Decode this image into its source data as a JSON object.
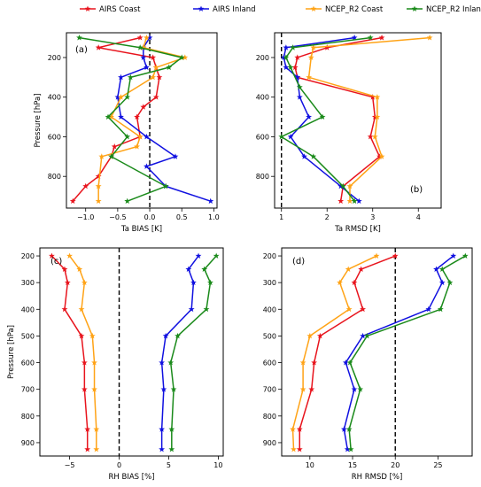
{
  "legend": [
    {
      "name": "AIRS Coast",
      "color": "#e8141d"
    },
    {
      "name": "AIRS Inland",
      "color": "#1010e0"
    },
    {
      "name": "NCEP_R2 Coast",
      "color": "#ffa316"
    },
    {
      "name": "NCEP_R2 Inland",
      "color": "#1a8a1a"
    }
  ],
  "chart_data": [
    {
      "type": "line",
      "panel": "(a)",
      "xlabel": "Ta BIAS [K]",
      "ylabel": "Pressure [hPa]",
      "xlim": [
        -1.3,
        1.05
      ],
      "ylim": [
        960,
        75
      ],
      "y_inverted": true,
      "xticks": [
        -1.0,
        -0.5,
        0.0,
        0.5,
        1.0
      ],
      "xtick_labels": [
        "−1.0",
        "−0.5",
        "0.0",
        "0.5",
        "1.0"
      ],
      "yticks": [
        200,
        400,
        600,
        800
      ],
      "ref_x": 0,
      "legend_in": "(a)",
      "series": [
        {
          "name": "AIRS Coast",
          "color": "#e8141d",
          "x": [
            -0.15,
            -0.8,
            0.05,
            0.1,
            0.15,
            0.1,
            -0.1,
            -0.2,
            -0.15,
            -0.55,
            -0.6,
            -0.8,
            -1.0,
            -1.2
          ],
          "y": [
            100,
            150,
            200,
            250,
            300,
            400,
            450,
            500,
            600,
            650,
            700,
            800,
            850,
            925
          ]
        },
        {
          "name": "AIRS Inland",
          "color": "#1010e0",
          "x": [
            0.0,
            -0.1,
            -0.1,
            -0.05,
            -0.45,
            -0.5,
            -0.45,
            -0.05,
            0.4,
            -0.05,
            0.25,
            0.95
          ],
          "y": [
            100,
            150,
            200,
            250,
            300,
            400,
            500,
            600,
            700,
            750,
            850,
            925
          ]
        },
        {
          "name": "NCEP_R2 Coast",
          "color": "#ffa316",
          "x": [
            -0.05,
            -0.1,
            0.55,
            0.1,
            0.05,
            -0.45,
            -0.6,
            -0.15,
            -0.2,
            -0.75,
            -0.8,
            -0.8
          ],
          "y": [
            100,
            150,
            200,
            250,
            300,
            400,
            500,
            600,
            650,
            700,
            850,
            925
          ]
        },
        {
          "name": "NCEP_R2 Inland",
          "color": "#1a8a1a",
          "x": [
            -1.1,
            -0.15,
            0.5,
            0.3,
            -0.3,
            -0.35,
            -0.65,
            -0.35,
            -0.6,
            0.25,
            -0.35
          ],
          "y": [
            100,
            150,
            200,
            250,
            300,
            400,
            500,
            600,
            700,
            850,
            925
          ]
        }
      ]
    },
    {
      "type": "line",
      "panel": "(b)",
      "xlabel": "Ta RMSD [K]",
      "ylabel": "",
      "xlim": [
        0.85,
        4.5
      ],
      "ylim": [
        960,
        75
      ],
      "y_inverted": true,
      "xticks": [
        1,
        2,
        3,
        4
      ],
      "xtick_labels": [
        "1",
        "2",
        "3",
        "4"
      ],
      "yticks": [
        200,
        400,
        600,
        800
      ],
      "ref_x": 1,
      "legend_in": "(b)",
      "series": [
        {
          "name": "AIRS Coast",
          "color": "#e8141d",
          "x": [
            3.2,
            2.0,
            1.35,
            1.3,
            1.35,
            3.0,
            3.05,
            2.95,
            3.15,
            2.35,
            2.3
          ],
          "y": [
            100,
            150,
            200,
            250,
            300,
            400,
            500,
            600,
            700,
            850,
            925
          ]
        },
        {
          "name": "AIRS Inland",
          "color": "#1010e0",
          "x": [
            2.6,
            1.1,
            1.05,
            1.1,
            1.35,
            1.4,
            1.6,
            1.2,
            1.5,
            2.3,
            2.7
          ],
          "y": [
            100,
            150,
            200,
            250,
            300,
            400,
            500,
            600,
            700,
            850,
            925
          ]
        },
        {
          "name": "NCEP_R2 Coast",
          "color": "#ffa316",
          "x": [
            4.25,
            1.7,
            1.65,
            1.6,
            3.1,
            3.1,
            3.05,
            3.2,
            2.5,
            2.5
          ],
          "y": [
            100,
            150,
            200,
            300,
            400,
            500,
            600,
            700,
            850,
            925
          ]
        },
        {
          "name": "NCEP_R2 Inland",
          "color": "#1a8a1a",
          "x": [
            2.95,
            1.25,
            1.1,
            1.2,
            1.4,
            1.9,
            1.0,
            1.7,
            2.35,
            2.6
          ],
          "y": [
            100,
            150,
            200,
            250,
            350,
            500,
            600,
            700,
            850,
            925
          ]
        }
      ]
    },
    {
      "type": "line",
      "panel": "(c)",
      "xlabel": "RH BIAS [%]",
      "ylabel": "Pressure [hPa]",
      "xlim": [
        -8.0,
        10.5
      ],
      "ylim": [
        950,
        170
      ],
      "y_inverted": true,
      "xticks": [
        -5,
        0,
        5,
        10
      ],
      "xtick_labels": [
        "−5",
        "0",
        "5",
        "10"
      ],
      "yticks": [
        200,
        300,
        400,
        500,
        600,
        700,
        800,
        900
      ],
      "ref_x": 0,
      "legend_in": "(c)",
      "series": [
        {
          "name": "AIRS Coast",
          "color": "#e8141d",
          "x": [
            -6.8,
            -5.5,
            -5.2,
            -5.5,
            -3.8,
            -3.5,
            -3.5,
            -3.2,
            -3.2
          ],
          "y": [
            200,
            250,
            300,
            400,
            500,
            600,
            700,
            850,
            925
          ]
        },
        {
          "name": "AIRS Inland",
          "color": "#1010e0",
          "x": [
            8.0,
            7.0,
            7.5,
            7.3,
            4.7,
            4.3,
            4.5,
            4.3,
            4.3
          ],
          "y": [
            200,
            250,
            300,
            400,
            500,
            600,
            700,
            850,
            925
          ]
        },
        {
          "name": "NCEP_R2 Coast",
          "color": "#ffa316",
          "x": [
            -5.0,
            -4.0,
            -3.5,
            -3.8,
            -2.7,
            -2.5,
            -2.5,
            -2.3,
            -2.3
          ],
          "y": [
            200,
            250,
            300,
            400,
            500,
            600,
            700,
            850,
            925
          ]
        },
        {
          "name": "NCEP_R2 Inland",
          "color": "#1a8a1a",
          "x": [
            9.8,
            8.6,
            9.2,
            8.8,
            5.9,
            5.2,
            5.5,
            5.3,
            5.3
          ],
          "y": [
            200,
            250,
            300,
            400,
            500,
            600,
            700,
            850,
            925
          ]
        }
      ]
    },
    {
      "type": "line",
      "panel": "(d)",
      "xlabel": "RH RMSD [%]",
      "ylabel": "",
      "xlim": [
        6.7,
        29.0
      ],
      "ylim": [
        950,
        170
      ],
      "y_inverted": true,
      "xticks": [
        10,
        15,
        20,
        25
      ],
      "xtick_labels": [
        "10",
        "15",
        "20",
        "25"
      ],
      "yticks": [
        200,
        300,
        400,
        500,
        600,
        700,
        800,
        900
      ],
      "ref_x": 20,
      "legend_in": "(d)",
      "series": [
        {
          "name": "AIRS Coast",
          "color": "#e8141d",
          "x": [
            20.0,
            16.0,
            15.2,
            16.2,
            11.2,
            10.5,
            10.2,
            8.8,
            8.8
          ],
          "y": [
            200,
            250,
            300,
            400,
            500,
            600,
            700,
            850,
            925
          ]
        },
        {
          "name": "AIRS Inland",
          "color": "#1010e0",
          "x": [
            26.8,
            24.8,
            25.5,
            23.9,
            16.2,
            14.2,
            15.2,
            14.0,
            14.4
          ],
          "y": [
            200,
            250,
            300,
            400,
            500,
            600,
            700,
            850,
            925
          ]
        },
        {
          "name": "NCEP_R2 Coast",
          "color": "#ffa316",
          "x": [
            17.8,
            14.5,
            13.5,
            14.6,
            10.0,
            9.2,
            9.2,
            8.0,
            8.1
          ],
          "y": [
            200,
            250,
            300,
            400,
            500,
            600,
            700,
            850,
            925
          ]
        },
        {
          "name": "NCEP_R2 Inland",
          "color": "#1a8a1a",
          "x": [
            28.2,
            25.5,
            26.4,
            25.3,
            16.7,
            14.7,
            15.9,
            14.6,
            14.8
          ],
          "y": [
            200,
            250,
            300,
            400,
            500,
            600,
            700,
            850,
            925
          ]
        }
      ]
    }
  ]
}
